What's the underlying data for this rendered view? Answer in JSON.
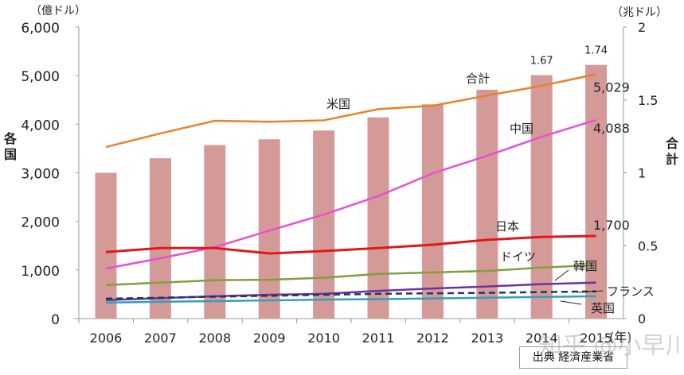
{
  "chart_data": {
    "type": "bar+line",
    "categories": [
      "2006",
      "2007",
      "2008",
      "2009",
      "2010",
      "2011",
      "2012",
      "2013",
      "2014",
      "2015"
    ],
    "left_axis": {
      "label": "各国",
      "unit": "（億ドル）",
      "ylim": [
        0,
        6000
      ],
      "ticks": [
        "0",
        "1,000",
        "2,000",
        "3,000",
        "4,000",
        "5,000",
        "6,000"
      ]
    },
    "right_axis": {
      "label": "合計",
      "unit": "（兆ドル）",
      "ylim": [
        0,
        2
      ],
      "ticks": [
        "0",
        "0.5",
        "1",
        "1.5",
        "2"
      ]
    },
    "x_unit": "(年)",
    "bars": {
      "name": "合計",
      "color": "#d49a98",
      "values": [
        1.0,
        1.1,
        1.19,
        1.23,
        1.29,
        1.38,
        1.47,
        1.57,
        1.67,
        1.74
      ],
      "data_labels": {
        "8": "1.67",
        "9": "1.74"
      }
    },
    "series": [
      {
        "name": "米国",
        "color": "#e8822a",
        "dash": false,
        "values": [
          3530,
          3810,
          4070,
          4050,
          4080,
          4310,
          4380,
          4590,
          4790,
          5029
        ],
        "end_label": "5,029"
      },
      {
        "name": "中国",
        "color": "#e84fd0",
        "dash": false,
        "values": [
          1030,
          1240,
          1470,
          1810,
          2140,
          2520,
          2990,
          3350,
          3740,
          4088
        ],
        "end_label": "4,088"
      },
      {
        "name": "日本",
        "color": "#e01818",
        "dash": false,
        "values": [
          1370,
          1450,
          1450,
          1340,
          1390,
          1450,
          1520,
          1620,
          1680,
          1700
        ],
        "end_label": "1,700"
      },
      {
        "name": "ドイツ",
        "color": "#7fa040",
        "dash": false,
        "values": [
          690,
          740,
          790,
          800,
          840,
          920,
          950,
          980,
          1050,
          1100
        ]
      },
      {
        "name": "韓国",
        "color": "#7030a0",
        "dash": false,
        "values": [
          380,
          420,
          460,
          490,
          510,
          570,
          620,
          660,
          710,
          740
        ]
      },
      {
        "name": "フランス",
        "color": "#1f3864",
        "dash": true,
        "values": [
          410,
          430,
          450,
          470,
          490,
          510,
          520,
          530,
          545,
          560
        ]
      },
      {
        "name": "英国",
        "color": "#31a0b8",
        "dash": false,
        "values": [
          330,
          345,
          360,
          375,
          390,
          400,
          415,
          430,
          445,
          460
        ]
      }
    ],
    "grid": false
  },
  "source": "出典  経済産業省",
  "watermark": "知乎 @小早川"
}
